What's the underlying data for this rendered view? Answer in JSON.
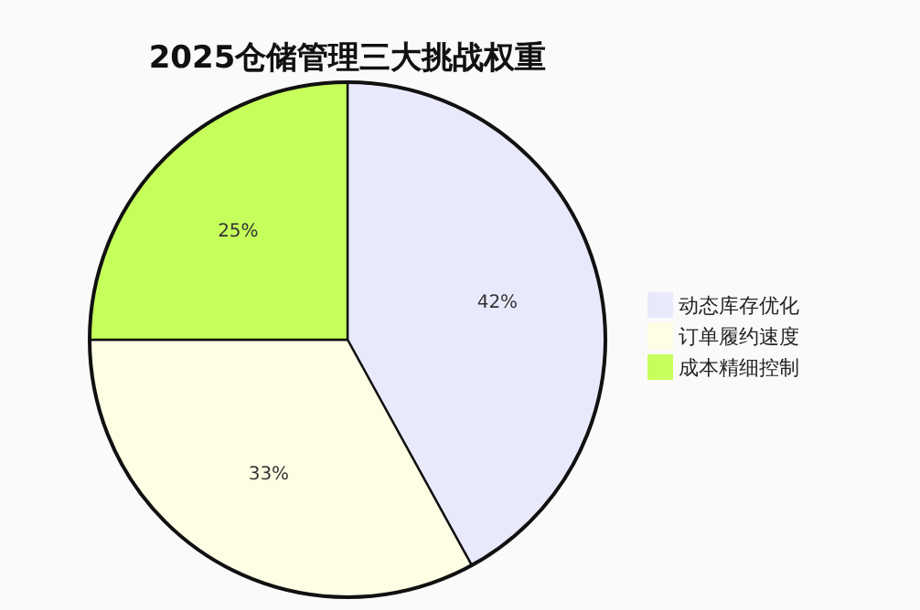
{
  "chart_data": {
    "type": "pie",
    "title": "2025仓储管理三大挑战权重",
    "categories": [
      "动态库存优化",
      "订单履约速度",
      "成本精细控制"
    ],
    "values": [
      42,
      33,
      25
    ],
    "colors": [
      "#e9e9fc",
      "#fefee4",
      "#c6ff5c"
    ],
    "data_labels": true,
    "value_labels": [
      "42%",
      "33%",
      "25%"
    ],
    "legend": "right"
  }
}
